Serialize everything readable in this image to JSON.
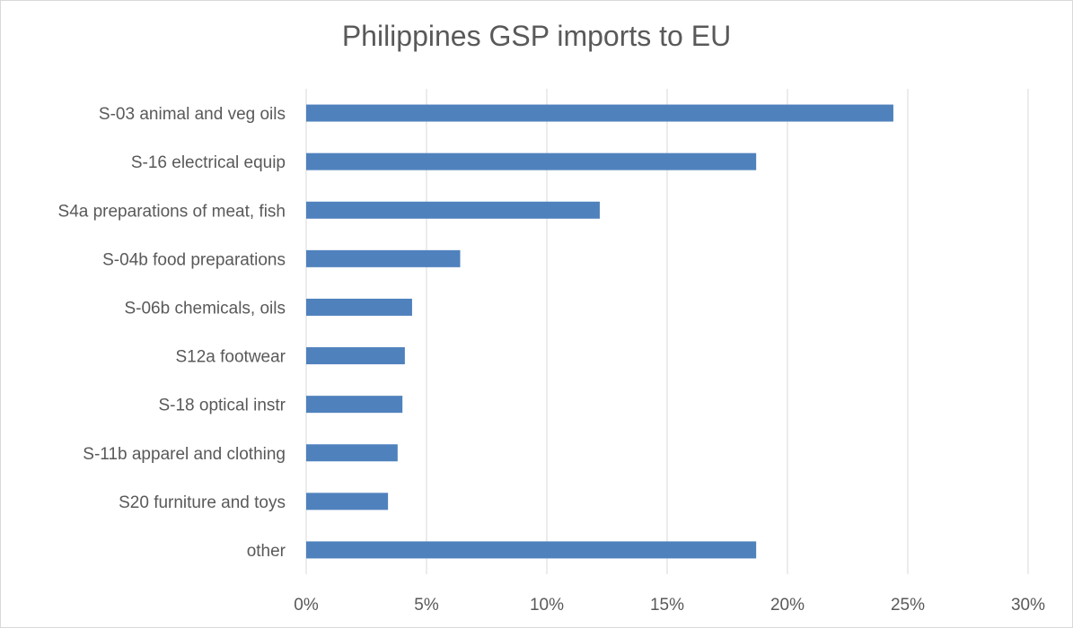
{
  "chart_data": {
    "type": "bar",
    "orientation": "horizontal",
    "title": "Philippines GSP imports to EU",
    "xlabel": "",
    "ylabel": "",
    "categories": [
      "S-03 animal and veg oils",
      "S-16 electrical equip",
      "S4a preparations of meat, fish",
      "S-04b food preparations",
      "S-06b chemicals, oils",
      "S12a footwear",
      "S-18 optical instr",
      "S-11b apparel and clothing",
      "S20 furniture and toys",
      "other"
    ],
    "values": [
      24.4,
      18.7,
      12.2,
      6.4,
      4.4,
      4.1,
      4.0,
      3.8,
      3.4,
      18.7
    ],
    "value_unit": "%",
    "xlim": [
      0,
      30
    ],
    "xticks": [
      0,
      5,
      10,
      15,
      20,
      25,
      30
    ],
    "xtick_labels": [
      "0%",
      "5%",
      "10%",
      "15%",
      "20%",
      "25%",
      "30%"
    ],
    "grid": "vertical",
    "legend": "none",
    "bar_color": "#4f81bd"
  }
}
